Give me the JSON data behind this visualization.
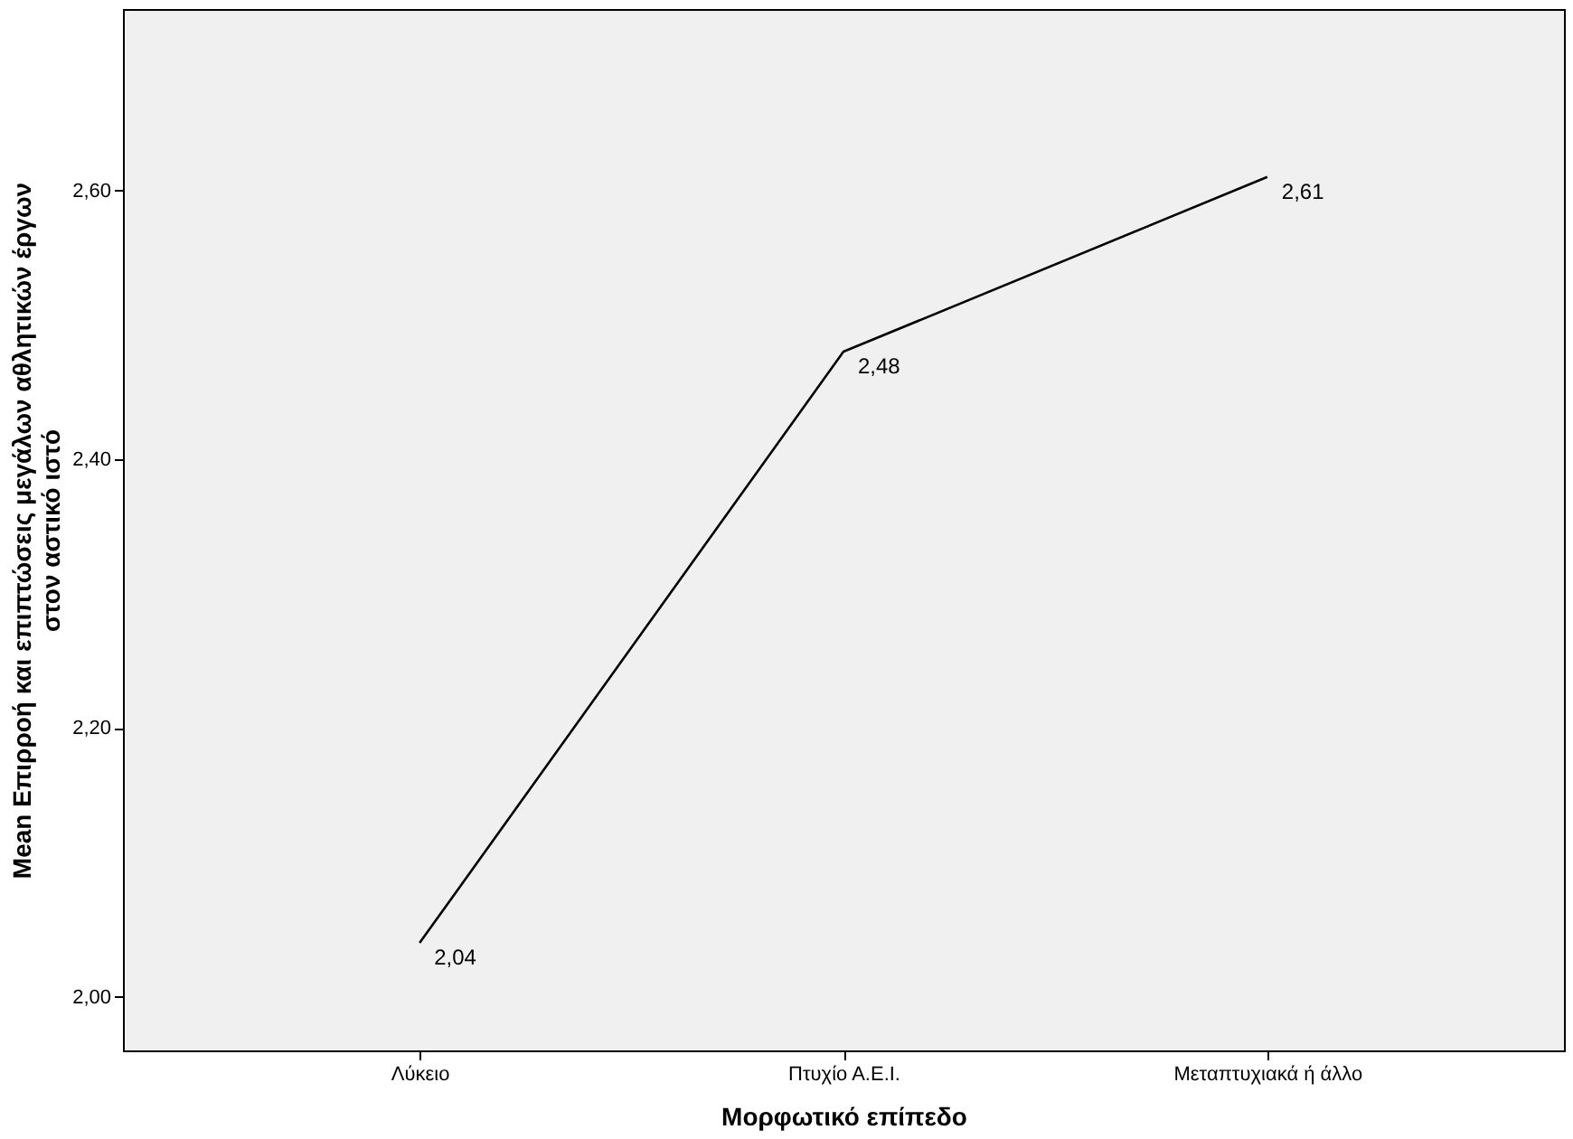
{
  "chart_data": {
    "type": "line",
    "xlabel": "Μορφωτικό επίπεδο",
    "ylabel": "Mean Επιρροή και επιπτώσεις μεγάλων αθλητικών έργων\nστον αστικό ιστό",
    "categories": [
      "Λύκειο",
      "Πτυχίο Α.Ε.Ι.",
      "Μεταπτυχιακά ή άλλο"
    ],
    "series": [
      {
        "color": "#000000",
        "values": [
          2.04,
          2.48,
          2.61
        ],
        "value_labels": [
          "2,04",
          "2,48",
          "2,61"
        ]
      }
    ],
    "ylim": [
      1.96,
      2.735
    ],
    "yticks": [
      {
        "value": 2.0,
        "label": "2,00"
      },
      {
        "value": 2.2,
        "label": "2,20"
      },
      {
        "value": 2.4,
        "label": "2,40"
      },
      {
        "value": 2.6,
        "label": "2,60"
      }
    ],
    "grid": false,
    "marker": "none",
    "line_style": "solid"
  }
}
